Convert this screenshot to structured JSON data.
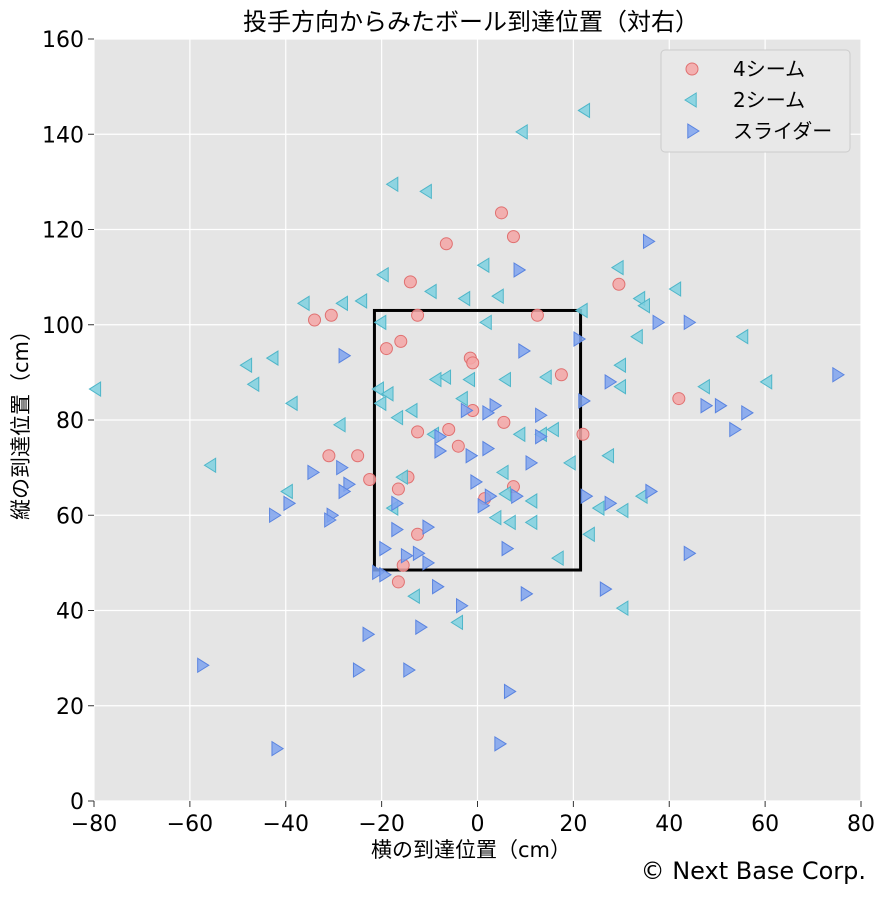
{
  "chart_data": {
    "type": "scatter",
    "title": "投手方向からみたボール到達位置（対右）",
    "xlabel": "横の到達位置（cm）",
    "ylabel": "縦の到達位置（cm）",
    "xlim": [
      -80,
      80
    ],
    "ylim": [
      0,
      160
    ],
    "x_ticks": [
      -80,
      -60,
      -40,
      -20,
      0,
      20,
      40,
      60,
      80
    ],
    "y_ticks": [
      0,
      20,
      40,
      60,
      80,
      100,
      120,
      140,
      160
    ],
    "x_tick_labels": [
      "−80",
      "−60",
      "−40",
      "−20",
      "0",
      "20",
      "40",
      "60",
      "80"
    ],
    "y_tick_labels": [
      "0",
      "20",
      "40",
      "60",
      "80",
      "100",
      "120",
      "140",
      "160"
    ],
    "grid": true,
    "background": "#e5e5e5",
    "legend_position": "top-right",
    "strike_zone": {
      "x": [
        -21.5,
        21.5
      ],
      "y": [
        48.5,
        103
      ]
    },
    "credit": "© Next Base Corp.",
    "series": [
      {
        "name": "4シーム",
        "marker": "circle",
        "fill": "#f4a6a6",
        "stroke": "#e07070",
        "points": [
          [
            5,
            123.5
          ],
          [
            7.5,
            118.5
          ],
          [
            -6.5,
            117
          ],
          [
            -14,
            109
          ],
          [
            29.5,
            108.5
          ],
          [
            -34,
            101
          ],
          [
            -30.5,
            102
          ],
          [
            -12.5,
            102
          ],
          [
            12.5,
            102
          ],
          [
            -19,
            95
          ],
          [
            -16,
            96.5
          ],
          [
            -1.5,
            93
          ],
          [
            -1,
            92
          ],
          [
            17.5,
            89.5
          ],
          [
            42,
            84.5
          ],
          [
            -1,
            82
          ],
          [
            5.5,
            79.5
          ],
          [
            -12.5,
            77.5
          ],
          [
            -6,
            78
          ],
          [
            22,
            77
          ],
          [
            -4,
            74.5
          ],
          [
            -31,
            72.5
          ],
          [
            -25,
            72.5
          ],
          [
            -22.5,
            67.5
          ],
          [
            -14.5,
            68
          ],
          [
            7.5,
            66
          ],
          [
            -16.5,
            65.5
          ],
          [
            1.5,
            63.5
          ],
          [
            -12.5,
            56
          ],
          [
            -15.5,
            49.5
          ],
          [
            -16.5,
            46
          ]
        ]
      },
      {
        "name": "2シーム",
        "marker": "triangle-left",
        "fill": "#7fd1e0",
        "stroke": "#4fb6c9",
        "points": [
          [
            22.5,
            145
          ],
          [
            9.5,
            140.5
          ],
          [
            -17.5,
            129.5
          ],
          [
            -10.5,
            128
          ],
          [
            1.5,
            112.5
          ],
          [
            -19.5,
            110.5
          ],
          [
            29.5,
            112
          ],
          [
            41.5,
            107.5
          ],
          [
            -9.5,
            107
          ],
          [
            4.5,
            106
          ],
          [
            -36,
            104.5
          ],
          [
            -28,
            104.5
          ],
          [
            -24,
            105
          ],
          [
            -2.5,
            105.5
          ],
          [
            34,
            105.5
          ],
          [
            35,
            104
          ],
          [
            22,
            103
          ],
          [
            -20,
            100.5
          ],
          [
            2,
            100.5
          ],
          [
            33.5,
            97.5
          ],
          [
            55.5,
            97.5
          ],
          [
            -42.5,
            93
          ],
          [
            -48,
            91.5
          ],
          [
            30,
            91.5
          ],
          [
            -6.5,
            89
          ],
          [
            -8.5,
            88.5
          ],
          [
            -1.5,
            88.5
          ],
          [
            6,
            88.5
          ],
          [
            14.5,
            89
          ],
          [
            -46.5,
            87.5
          ],
          [
            -79.5,
            86.5
          ],
          [
            -20.5,
            86.5
          ],
          [
            30,
            87
          ],
          [
            47.5,
            87
          ],
          [
            60.5,
            88
          ],
          [
            -18.5,
            85.5
          ],
          [
            -3,
            84.5
          ],
          [
            -38.5,
            83.5
          ],
          [
            -20,
            83.5
          ],
          [
            -13.5,
            82
          ],
          [
            -16.5,
            80.5
          ],
          [
            -28.5,
            79
          ],
          [
            16,
            78
          ],
          [
            9,
            77
          ],
          [
            13.5,
            77
          ],
          [
            -9,
            77
          ],
          [
            19.5,
            71
          ],
          [
            27.5,
            72.5
          ],
          [
            -55.5,
            70.5
          ],
          [
            -15.5,
            68
          ],
          [
            5.5,
            69
          ],
          [
            -39.5,
            65
          ],
          [
            6,
            64.5
          ],
          [
            -17.5,
            61.5
          ],
          [
            25.5,
            61.5
          ],
          [
            30.5,
            61
          ],
          [
            34.5,
            64
          ],
          [
            11.5,
            63
          ],
          [
            4,
            59.5
          ],
          [
            7,
            58.5
          ],
          [
            11.5,
            58.5
          ],
          [
            23.5,
            56
          ],
          [
            17,
            51
          ],
          [
            -13,
            43
          ],
          [
            -4,
            37.5
          ],
          [
            30.5,
            40.5
          ]
        ]
      },
      {
        "name": "スライダー",
        "marker": "triangle-right",
        "fill": "#7fa3ee",
        "stroke": "#5a84e0",
        "points": [
          [
            35.5,
            117.5
          ],
          [
            8.5,
            111.5
          ],
          [
            44,
            100.5
          ],
          [
            37.5,
            100.5
          ],
          [
            -28,
            93.5
          ],
          [
            9.5,
            94.5
          ],
          [
            21,
            97
          ],
          [
            75,
            89.5
          ],
          [
            27.5,
            88
          ],
          [
            22,
            84
          ],
          [
            47.5,
            83
          ],
          [
            50.5,
            83
          ],
          [
            56,
            81.5
          ],
          [
            53.5,
            78
          ],
          [
            13,
            81
          ],
          [
            3.5,
            83
          ],
          [
            -2.5,
            82
          ],
          [
            2,
            81.5
          ],
          [
            -8,
            76.5
          ],
          [
            13,
            76.5
          ],
          [
            -8,
            73.5
          ],
          [
            -1.5,
            72.5
          ],
          [
            2,
            74
          ],
          [
            11,
            71
          ],
          [
            -28.5,
            70
          ],
          [
            -34.5,
            69
          ],
          [
            -27,
            66.5
          ],
          [
            -28,
            65
          ],
          [
            -0.5,
            67
          ],
          [
            2.5,
            64
          ],
          [
            8,
            64
          ],
          [
            1,
            62
          ],
          [
            -39.5,
            62.5
          ],
          [
            -17,
            62.5
          ],
          [
            -30.5,
            60
          ],
          [
            -31,
            59
          ],
          [
            -42.5,
            60
          ],
          [
            -10.5,
            57.5
          ],
          [
            -17,
            57
          ],
          [
            22.5,
            64
          ],
          [
            27.5,
            62.5
          ],
          [
            36,
            65
          ],
          [
            6,
            53
          ],
          [
            44,
            52
          ],
          [
            -19.5,
            53
          ],
          [
            -15,
            51.5
          ],
          [
            -12.5,
            52
          ],
          [
            -10.5,
            50
          ],
          [
            -21,
            48
          ],
          [
            -19.5,
            47.5
          ],
          [
            -8.5,
            45
          ],
          [
            10,
            43.5
          ],
          [
            26.5,
            44.5
          ],
          [
            -3.5,
            41
          ],
          [
            -12,
            36.5
          ],
          [
            -23,
            35
          ],
          [
            -57.5,
            28.5
          ],
          [
            -25,
            27.5
          ],
          [
            -14.5,
            27.5
          ],
          [
            6.5,
            23
          ],
          [
            -42,
            11
          ],
          [
            4.5,
            12
          ]
        ]
      }
    ]
  }
}
